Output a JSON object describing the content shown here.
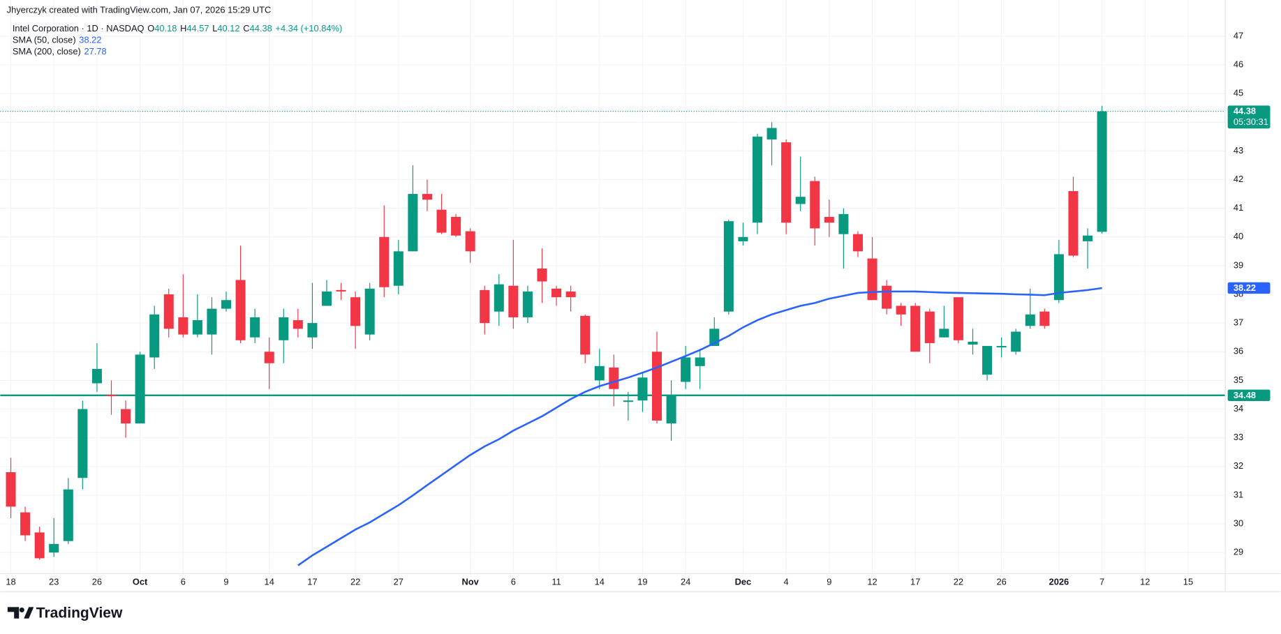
{
  "header": {
    "attribution": "Jhyerczyk created with TradingView.com, Jan 07, 2026 15:29 UTC"
  },
  "chart_data": {
    "type": "candlestick",
    "title": "Intel Corporation · 1D · NASDAQ",
    "ohlc_labels": [
      {
        "label": "O",
        "value": 40.18
      },
      {
        "label": "H",
        "value": 44.57
      },
      {
        "label": "L",
        "value": 40.12
      },
      {
        "label": "C",
        "value": 44.38
      }
    ],
    "change_label": "+4.34 (+10.84%)",
    "categories": [
      "18",
      null,
      null,
      "23",
      null,
      null,
      "26",
      null,
      null,
      "Oct",
      null,
      null,
      "6",
      null,
      null,
      "9",
      null,
      null,
      "14",
      null,
      null,
      "17",
      null,
      null,
      "22",
      null,
      null,
      "27",
      null,
      null,
      null,
      null,
      "Nov",
      null,
      null,
      "6",
      null,
      null,
      "11",
      null,
      null,
      "14",
      null,
      null,
      "19",
      null,
      null,
      "24",
      null,
      null,
      null,
      "Dec",
      null,
      null,
      "4",
      null,
      null,
      "9",
      null,
      null,
      "12",
      null,
      null,
      "17",
      null,
      null,
      "22",
      null,
      null,
      "26",
      null,
      null,
      null,
      "2026",
      null,
      null,
      "7",
      null,
      null,
      "12",
      null,
      null,
      "15"
    ],
    "open": [
      31.8,
      30.4,
      29.7,
      29.0,
      29.4,
      31.6,
      34.9,
      34.5,
      34.0,
      33.5,
      35.8,
      38.0,
      37.2,
      36.6,
      36.6,
      37.5,
      38.5,
      36.5,
      36.0,
      36.4,
      37.1,
      36.5,
      37.6,
      38.15,
      37.9,
      36.6,
      40.0,
      38.3,
      39.5,
      41.5,
      40.95,
      40.7,
      40.2,
      38.15,
      37.4,
      38.3,
      37.2,
      38.9,
      38.2,
      38.1,
      37.25,
      35.0,
      35.45,
      34.25,
      34.3,
      36.0,
      33.5,
      34.95,
      35.5,
      36.2,
      37.4,
      39.85,
      40.5,
      43.4,
      43.3,
      41.15,
      41.95,
      40.7,
      40.1,
      40.1,
      39.25,
      38.3,
      37.6,
      37.6,
      37.4,
      36.5,
      37.9,
      36.25,
      35.2,
      36.15,
      36.0,
      36.9,
      37.4,
      37.8,
      41.6,
      39.85,
      40.18,
      null,
      null,
      null,
      null,
      null,
      null
    ],
    "high": [
      32.3,
      30.6,
      29.9,
      30.2,
      31.6,
      34.3,
      36.3,
      35.0,
      34.3,
      36.0,
      37.6,
      38.2,
      38.7,
      38.0,
      37.9,
      38.1,
      39.7,
      37.5,
      36.5,
      37.5,
      37.5,
      38.4,
      38.5,
      38.4,
      38.1,
      38.4,
      41.1,
      39.9,
      42.5,
      42.0,
      41.5,
      40.8,
      40.3,
      38.3,
      38.7,
      39.9,
      38.3,
      39.6,
      38.3,
      38.3,
      37.3,
      36.1,
      35.9,
      34.6,
      35.3,
      36.7,
      35.0,
      36.2,
      36.1,
      37.2,
      40.6,
      40.5,
      43.6,
      44.0,
      43.4,
      42.8,
      42.1,
      41.3,
      41.0,
      40.2,
      40.0,
      38.5,
      37.7,
      37.7,
      37.5,
      37.6,
      37.9,
      36.8,
      36.2,
      36.5,
      36.8,
      38.2,
      37.5,
      39.9,
      42.1,
      40.3,
      44.57,
      null,
      null,
      null,
      null,
      null,
      null
    ],
    "low": [
      30.2,
      29.4,
      28.75,
      28.85,
      29.3,
      31.2,
      34.6,
      33.8,
      33.0,
      33.5,
      35.4,
      36.5,
      36.5,
      36.5,
      35.9,
      37.4,
      36.3,
      36.3,
      34.7,
      35.6,
      36.5,
      36.1,
      37.6,
      37.8,
      36.1,
      36.4,
      37.9,
      38.0,
      39.5,
      40.9,
      40.1,
      40.0,
      39.1,
      36.6,
      36.9,
      36.8,
      37.0,
      37.7,
      37.6,
      37.4,
      35.6,
      34.7,
      34.1,
      33.6,
      33.9,
      33.5,
      32.9,
      34.7,
      34.7,
      36.2,
      37.3,
      39.7,
      40.1,
      42.5,
      40.1,
      40.9,
      39.7,
      40.0,
      38.9,
      39.3,
      37.8,
      37.3,
      36.9,
      36.0,
      35.6,
      36.5,
      36.3,
      35.9,
      35.0,
      35.8,
      35.9,
      36.8,
      36.8,
      37.7,
      39.3,
      38.9,
      40.12,
      null,
      null,
      null,
      null,
      null,
      null
    ],
    "close": [
      30.6,
      29.6,
      28.8,
      29.3,
      31.2,
      34.0,
      35.4,
      34.45,
      33.5,
      35.9,
      37.3,
      36.8,
      36.6,
      37.1,
      37.5,
      37.8,
      36.4,
      37.2,
      35.6,
      37.2,
      36.8,
      37.0,
      38.1,
      38.1,
      36.9,
      38.2,
      38.25,
      39.5,
      41.5,
      41.3,
      40.15,
      40.05,
      39.5,
      37.0,
      38.35,
      37.2,
      38.1,
      38.45,
      37.9,
      37.9,
      35.9,
      35.5,
      34.7,
      34.3,
      35.1,
      33.6,
      34.5,
      35.8,
      35.8,
      36.8,
      40.55,
      40.0,
      43.5,
      43.8,
      40.5,
      41.4,
      40.3,
      40.5,
      40.8,
      39.5,
      37.8,
      37.5,
      37.3,
      36.0,
      36.3,
      36.8,
      36.4,
      36.35,
      36.2,
      36.2,
      36.7,
      37.3,
      36.9,
      39.4,
      39.35,
      40.05,
      44.38,
      null,
      null,
      null,
      null,
      null,
      null
    ],
    "up_color": "#089981",
    "down_color": "#f23645",
    "indicators": [
      {
        "name": "SMA (50, close)",
        "value": 38.22,
        "color": "#2962ff",
        "values": [
          null,
          null,
          null,
          null,
          null,
          null,
          null,
          null,
          null,
          null,
          null,
          null,
          null,
          null,
          null,
          null,
          null,
          null,
          null,
          null,
          28.55,
          28.9,
          29.2,
          29.5,
          29.8,
          30.05,
          30.35,
          30.65,
          30.99,
          31.35,
          31.7,
          32.05,
          32.4,
          32.7,
          32.95,
          33.25,
          33.5,
          33.75,
          34.05,
          34.35,
          34.6,
          34.8,
          34.95,
          35.1,
          35.27,
          35.45,
          35.65,
          35.85,
          36.06,
          36.3,
          36.55,
          36.85,
          37.1,
          37.3,
          37.45,
          37.6,
          37.7,
          37.85,
          37.95,
          38.05,
          38.08,
          38.1,
          38.1,
          38.1,
          38.08,
          38.06,
          38.05,
          38.04,
          38.03,
          38.02,
          38.0,
          37.99,
          37.97,
          38.05,
          38.1,
          38.15,
          38.22,
          null,
          null,
          null,
          null,
          null,
          null
        ]
      },
      {
        "name": "SMA (200, close)",
        "value": 27.78,
        "color": "#2962ff"
      }
    ],
    "hlines": [
      {
        "value": 34.48,
        "color": "#089981"
      }
    ],
    "countdown": "05:30:31",
    "ylim": [
      28.35,
      47.55
    ],
    "yticks": [
      29,
      30,
      31,
      32,
      33,
      34,
      35,
      36,
      37,
      38,
      39,
      40,
      41,
      42,
      43,
      44,
      45,
      46,
      47
    ],
    "grid": true
  },
  "footer": {
    "brand": "TradingView"
  }
}
